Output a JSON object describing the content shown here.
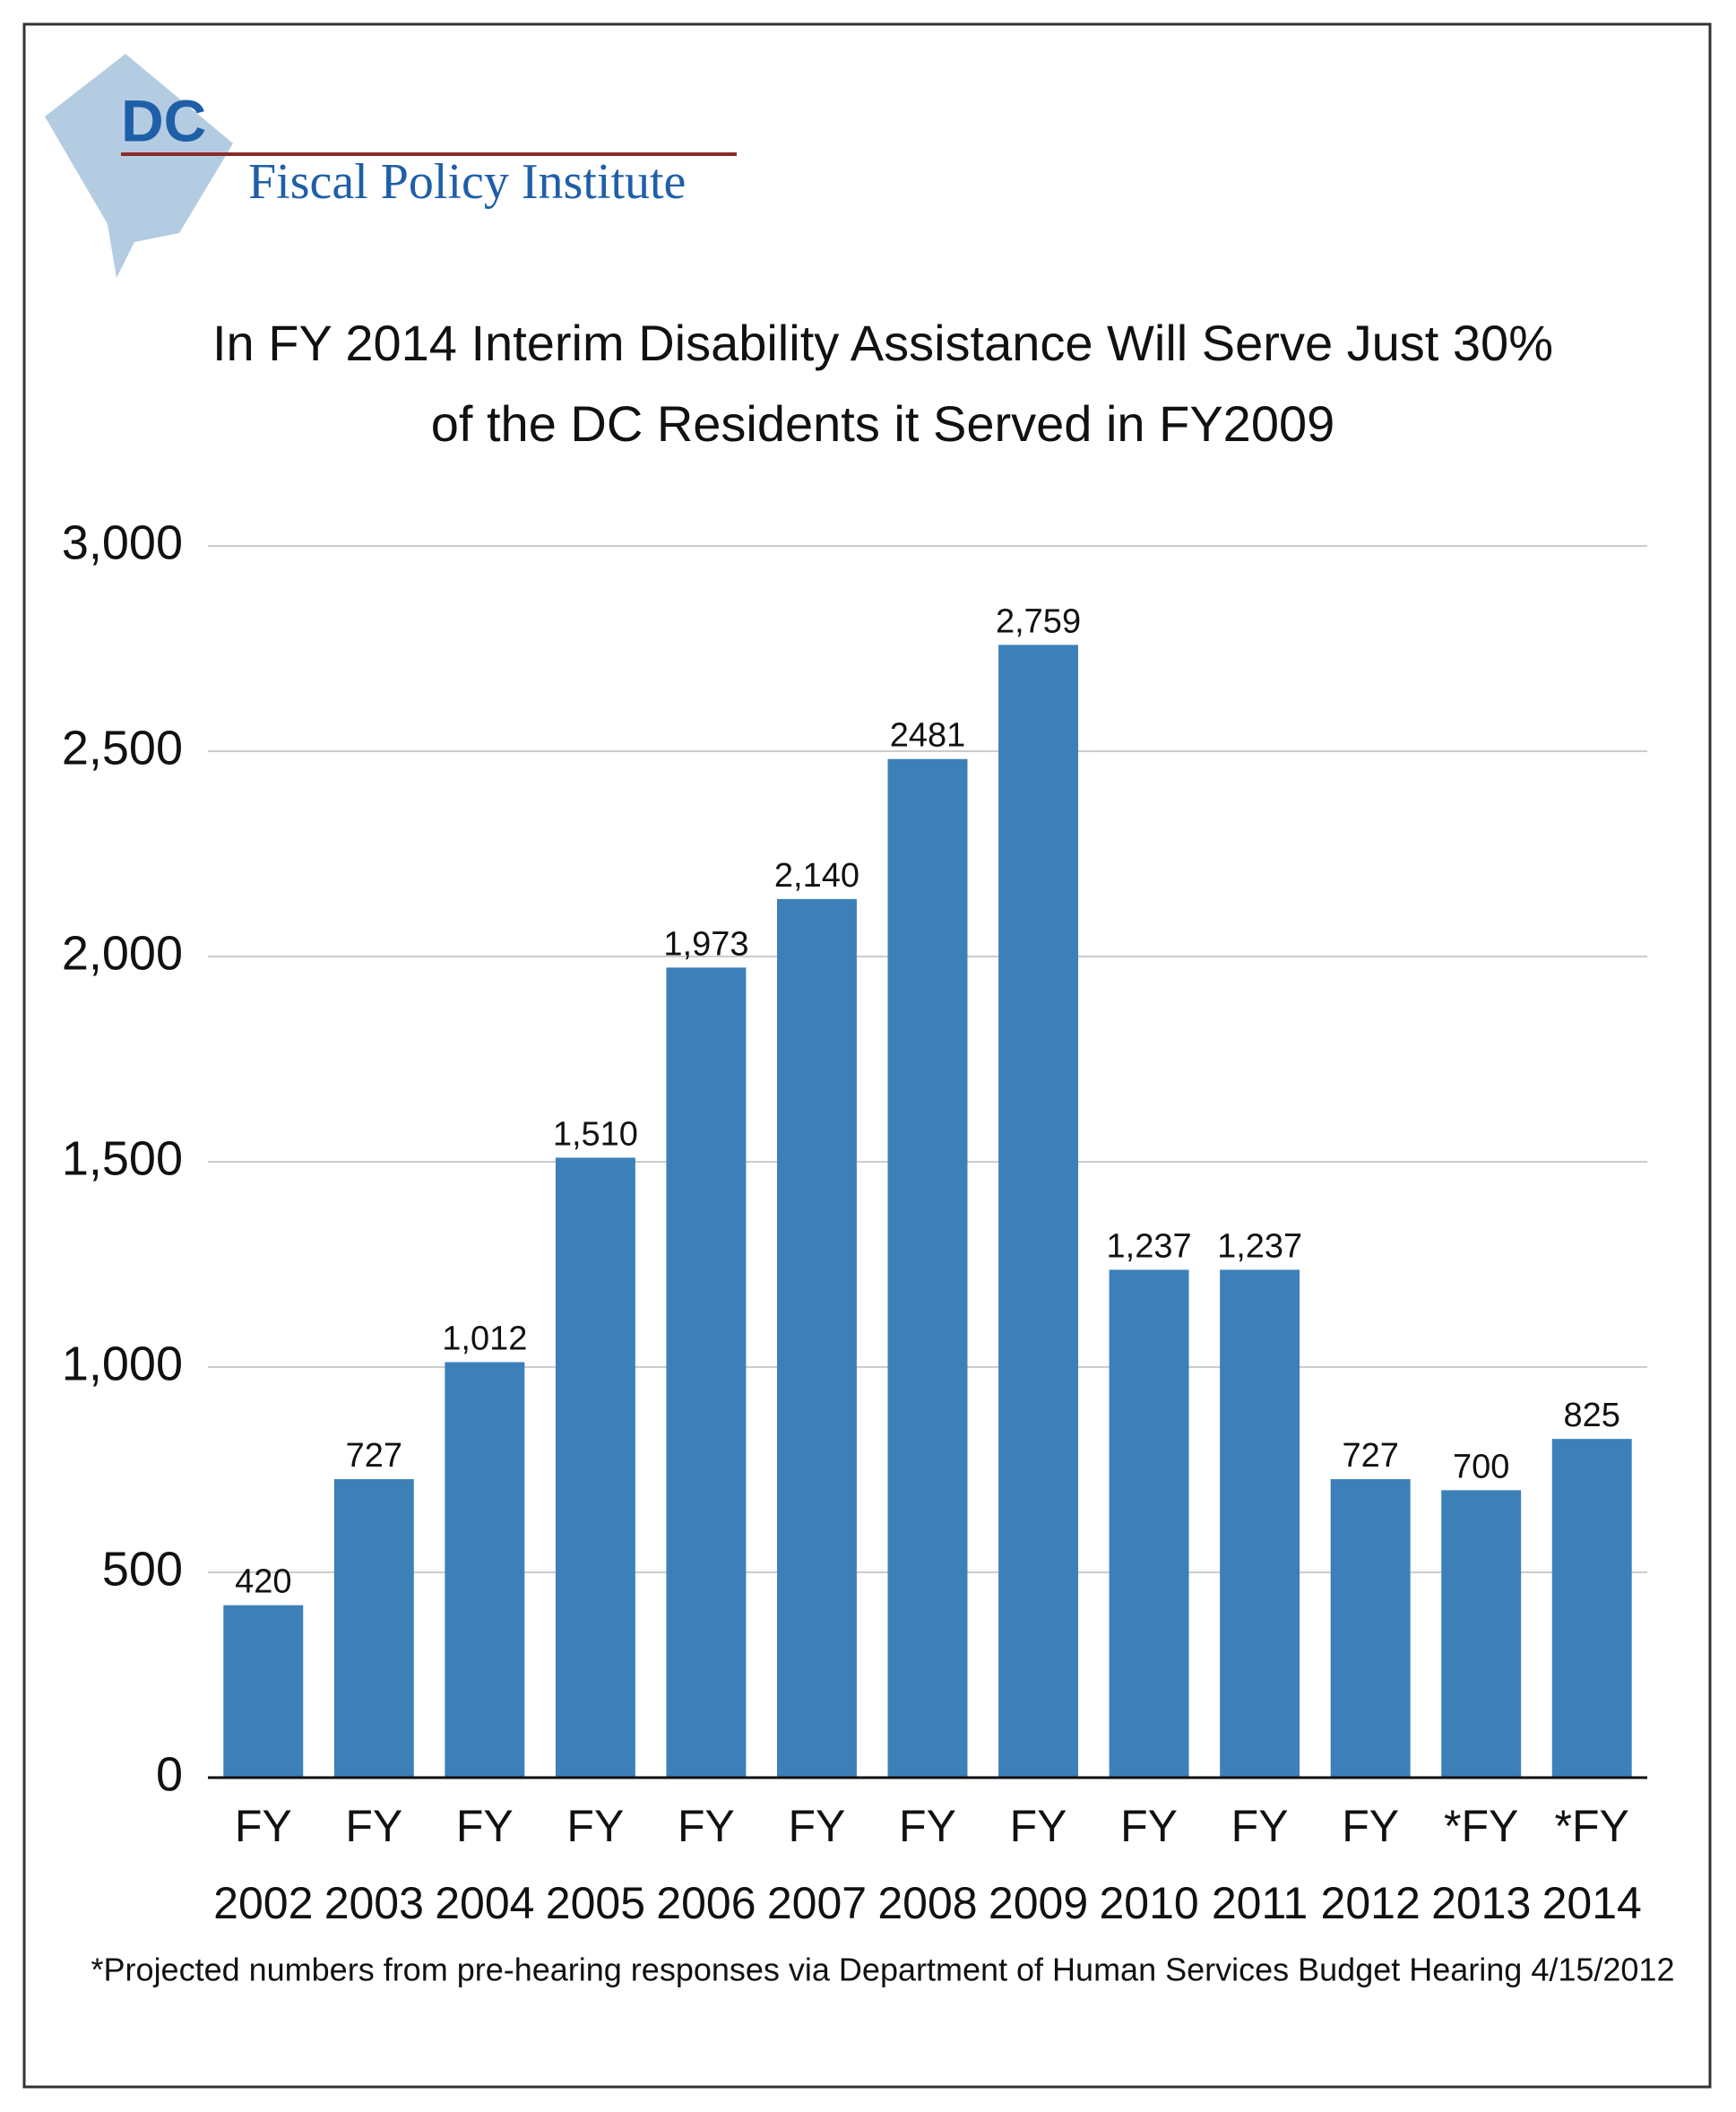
{
  "logo": {
    "short": "DC",
    "name": "Fiscal Policy Institute"
  },
  "chart_data": {
    "type": "bar",
    "title": [
      "In FY 2014 Interim Disability Assistance Will Serve Just 30%",
      "of the DC Residents it Served in FY2009"
    ],
    "categories": [
      [
        "FY",
        "2002"
      ],
      [
        "FY",
        "2003"
      ],
      [
        "FY",
        "2004"
      ],
      [
        "FY",
        "2005"
      ],
      [
        "FY",
        "2006"
      ],
      [
        "FY",
        "2007"
      ],
      [
        "FY",
        "2008"
      ],
      [
        "FY",
        "2009"
      ],
      [
        "FY",
        "2010"
      ],
      [
        "FY",
        "2011"
      ],
      [
        "FY",
        "2012"
      ],
      [
        "*FY",
        "2013"
      ],
      [
        "*FY",
        "2014"
      ]
    ],
    "values": [
      420,
      727,
      1012,
      1510,
      1973,
      2140,
      2481,
      2759,
      1237,
      1237,
      727,
      700,
      825
    ],
    "value_labels": [
      "420",
      "727",
      "1,012",
      "1,510",
      "1,973",
      "2,140",
      "2481",
      "2,759",
      "1,237",
      "1,237",
      "727",
      "700",
      "825"
    ],
    "color": "#3d80b9",
    "ylim": [
      0,
      3000
    ],
    "yticks": [
      0,
      500,
      {
        "value": 1000,
        "label": "1,000"
      },
      {
        "value": 1500,
        "label": "1,500"
      },
      {
        "value": 2000,
        "label": "2,000"
      },
      {
        "value": 2500,
        "label": "2,500"
      },
      {
        "value": 3000,
        "label": "3,000"
      }
    ],
    "grid": true,
    "footnote": "*Projected numbers from pre-hearing responses via Department of Human Services Budget Hearing 4/15/2012"
  }
}
